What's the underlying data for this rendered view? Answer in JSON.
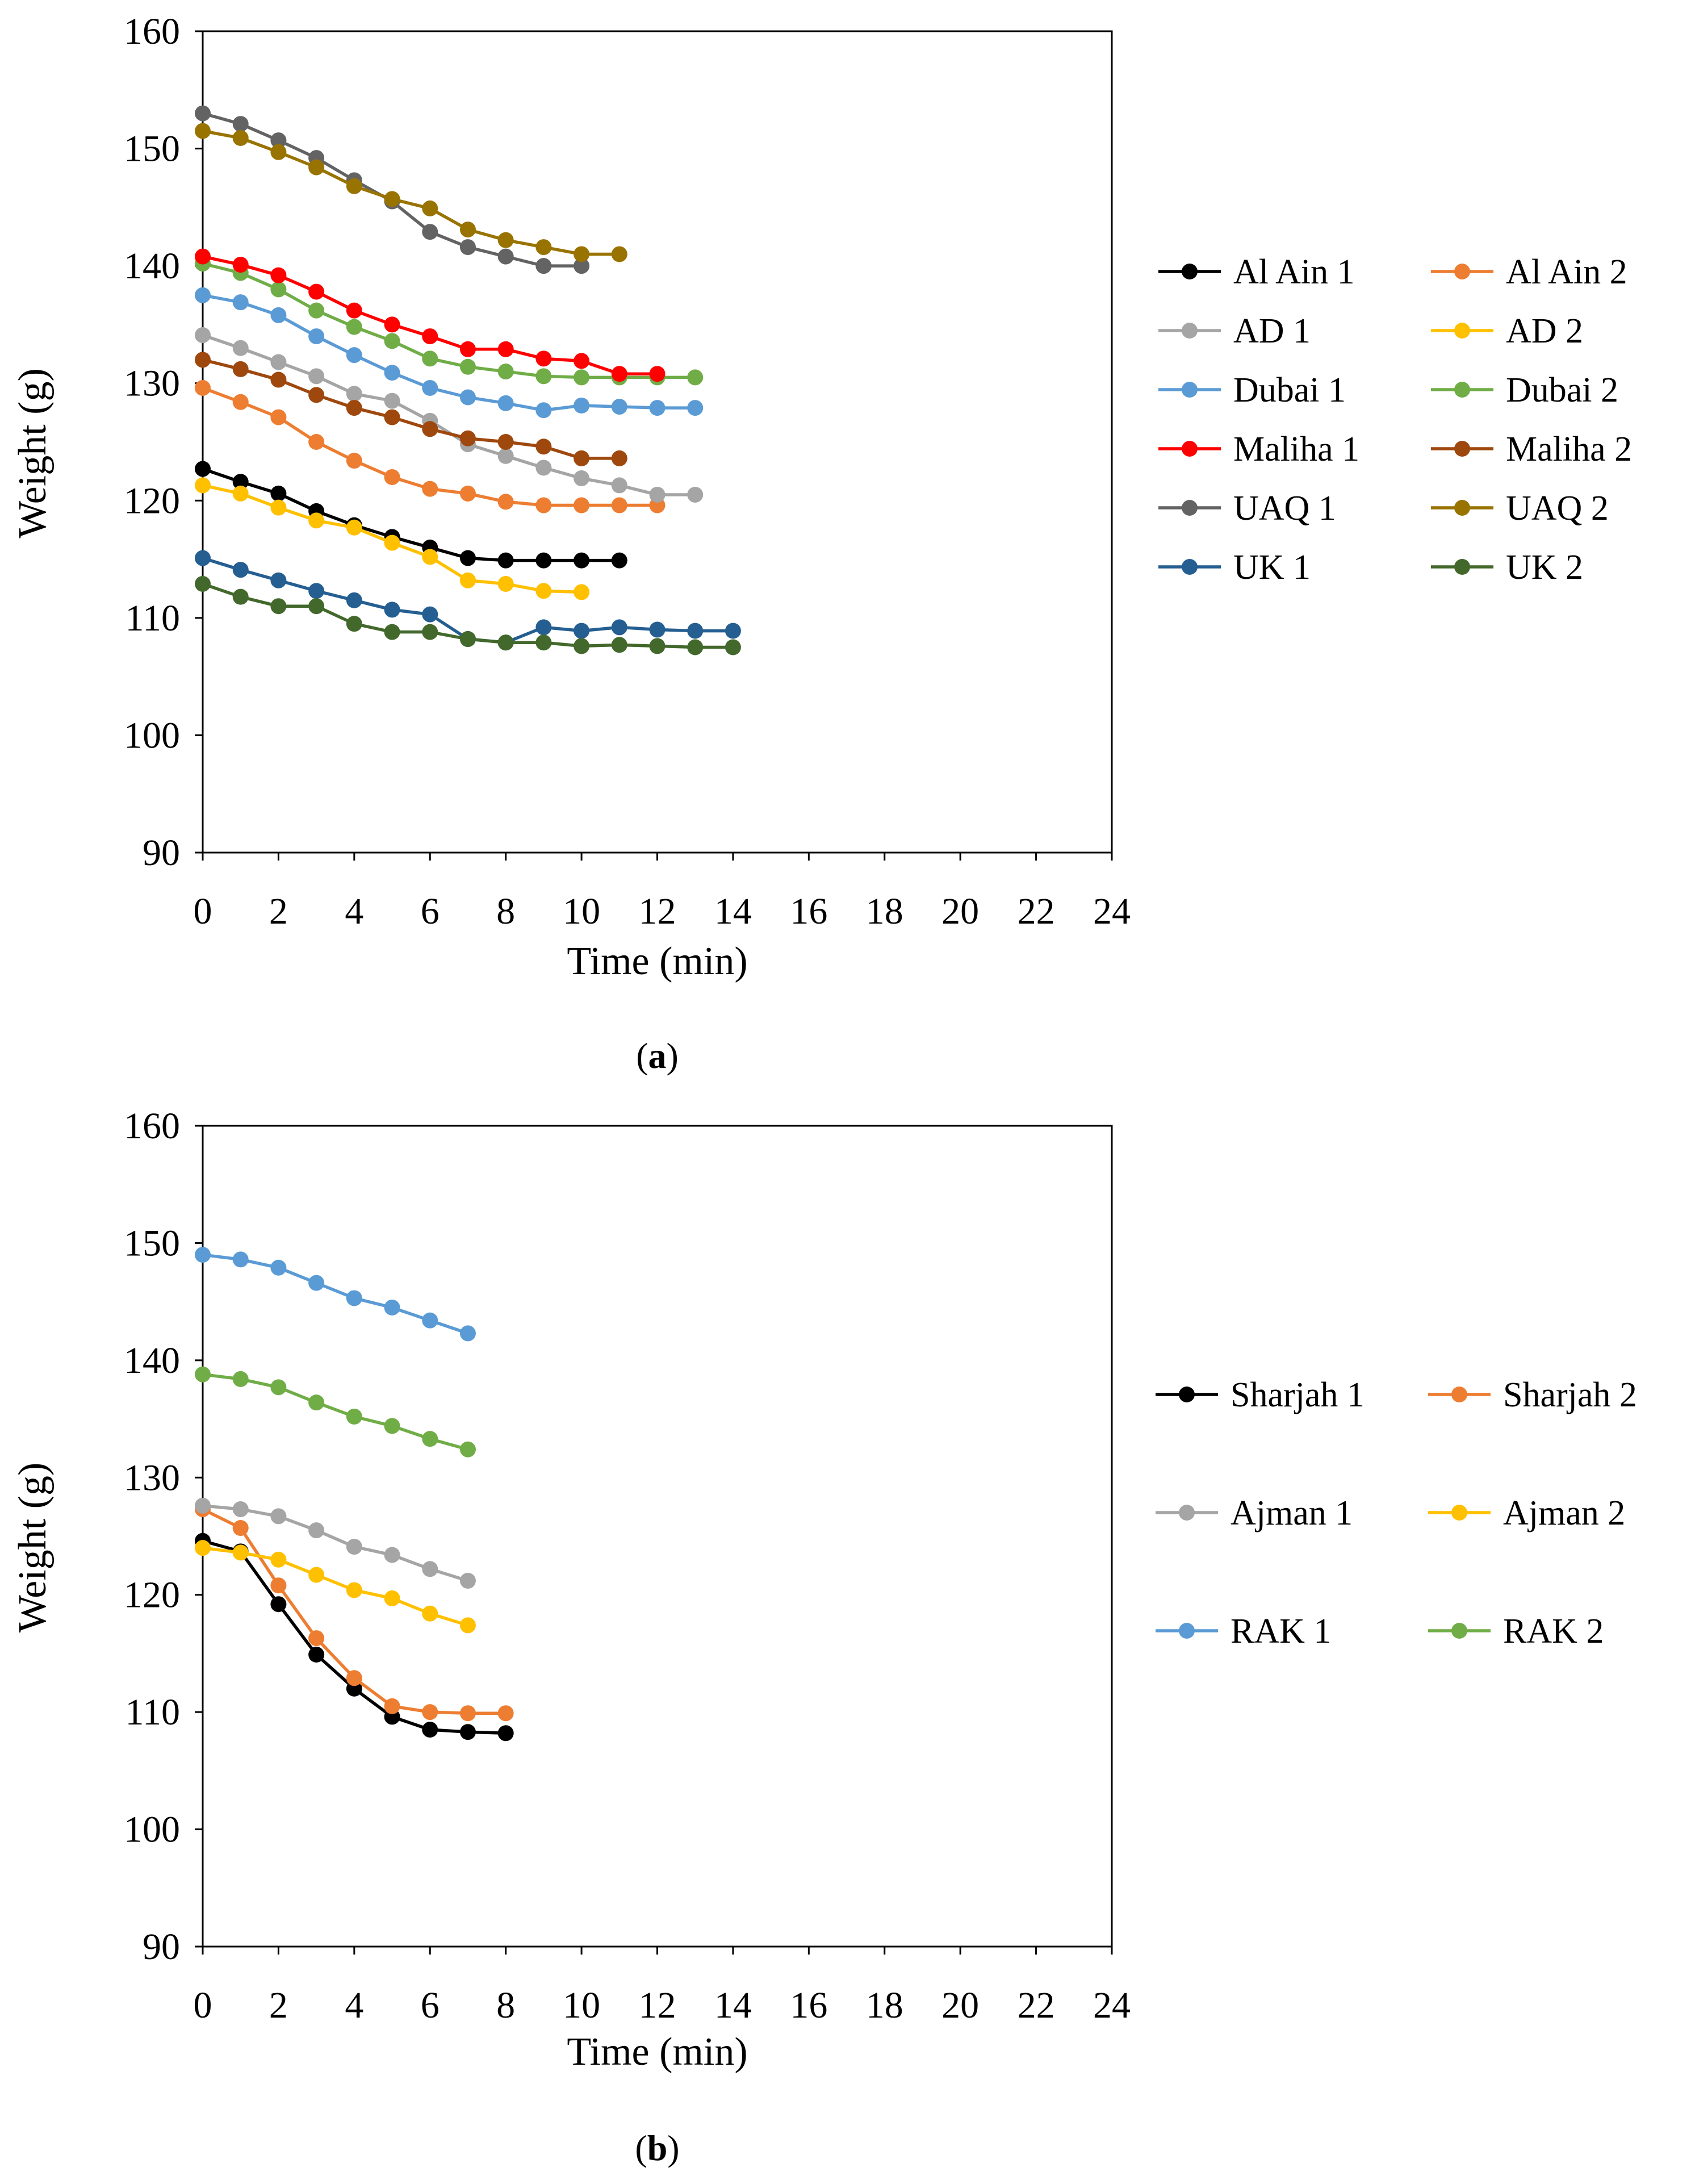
{
  "chart_data": [
    {
      "type": "line",
      "panel": "a",
      "caption": {
        "open": "(",
        "letter": "a",
        "close": ")"
      },
      "xlabel": "Time (min)",
      "ylabel": "Weight (g)",
      "xlim": [
        0,
        24
      ],
      "ylim": [
        90,
        160
      ],
      "xticks": [
        0,
        2,
        4,
        6,
        8,
        10,
        12,
        14,
        16,
        18,
        20,
        22,
        24
      ],
      "yticks": [
        90,
        100,
        110,
        120,
        130,
        140,
        150,
        160
      ],
      "grid": false,
      "legend": "right",
      "series": [
        {
          "name": "Al Ain 1",
          "color": "#000000",
          "values": [
            122.7,
            121.6,
            120.6,
            119.1,
            117.9,
            116.9,
            116.0,
            115.1,
            114.9,
            114.9,
            114.9,
            114.9
          ]
        },
        {
          "name": "Al Ain 2",
          "color": "#ed7d31",
          "values": [
            129.6,
            128.4,
            127.1,
            125.0,
            123.4,
            122.0,
            121.0,
            120.6,
            119.9,
            119.6,
            119.6,
            119.6,
            119.6
          ]
        },
        {
          "name": "AD 1",
          "color": "#a5a5a5",
          "values": [
            134.1,
            133.0,
            131.8,
            130.6,
            129.1,
            128.5,
            126.8,
            124.8,
            123.8,
            122.8,
            121.9,
            121.3,
            120.5,
            120.5
          ]
        },
        {
          "name": "AD 2",
          "color": "#ffc000",
          "values": [
            121.3,
            120.6,
            119.4,
            118.3,
            117.7,
            116.4,
            115.2,
            113.2,
            112.9,
            112.3,
            112.2
          ]
        },
        {
          "name": "Dubai 1",
          "color": "#5b9bd5",
          "values": [
            137.5,
            136.9,
            135.8,
            134.0,
            132.4,
            130.9,
            129.6,
            128.8,
            128.3,
            127.7,
            128.1,
            128.0,
            127.9,
            127.9
          ]
        },
        {
          "name": "Dubai 2",
          "color": "#70ad47",
          "values": [
            140.2,
            139.4,
            138.0,
            136.2,
            134.8,
            133.6,
            132.1,
            131.4,
            131.0,
            130.6,
            130.5,
            130.5,
            130.5,
            130.5
          ]
        },
        {
          "name": "Maliha 1",
          "color": "#ff0000",
          "values": [
            140.8,
            140.1,
            139.2,
            137.8,
            136.2,
            135.0,
            134.0,
            132.9,
            132.9,
            132.1,
            131.9,
            130.8,
            130.8
          ]
        },
        {
          "name": "Maliha 2",
          "color": "#9e480e",
          "values": [
            132.0,
            131.2,
            130.3,
            129.0,
            127.9,
            127.1,
            126.1,
            125.3,
            125.0,
            124.6,
            123.6,
            123.6
          ]
        },
        {
          "name": "UAQ 1",
          "color": "#636363",
          "values": [
            153.0,
            152.1,
            150.7,
            149.2,
            147.3,
            145.5,
            142.9,
            141.6,
            140.8,
            140.0,
            140.0
          ]
        },
        {
          "name": "UAQ 2",
          "color": "#997300",
          "values": [
            151.5,
            150.9,
            149.7,
            148.4,
            146.8,
            145.7,
            144.9,
            143.1,
            142.2,
            141.6,
            141.0,
            141.0
          ]
        },
        {
          "name": "UK 1",
          "color": "#255e91",
          "values": [
            115.1,
            114.1,
            113.2,
            112.3,
            111.5,
            110.7,
            110.3,
            108.2,
            107.9,
            109.2,
            108.9,
            109.2,
            109.0,
            108.9,
            108.9
          ]
        },
        {
          "name": "UK 2",
          "color": "#43682b",
          "values": [
            112.9,
            111.8,
            111.0,
            111.0,
            109.5,
            108.8,
            108.8,
            108.2,
            107.9,
            107.9,
            107.6,
            107.7,
            107.6,
            107.5,
            107.5
          ]
        }
      ]
    },
    {
      "type": "line",
      "panel": "b",
      "caption": {
        "open": "(",
        "letter": "b",
        "close": ")"
      },
      "xlabel": "Time (min)",
      "ylabel": "Weight (g)",
      "xlim": [
        0,
        24
      ],
      "ylim": [
        90,
        160
      ],
      "xticks": [
        0,
        2,
        4,
        6,
        8,
        10,
        12,
        14,
        16,
        18,
        20,
        22,
        24
      ],
      "yticks": [
        90,
        100,
        110,
        120,
        130,
        140,
        150,
        160
      ],
      "grid": false,
      "legend": "right",
      "series": [
        {
          "name": "Sharjah 1",
          "color": "#000000",
          "values": [
            124.6,
            123.7,
            119.2,
            114.9,
            112.0,
            109.6,
            108.5,
            108.3,
            108.2
          ]
        },
        {
          "name": "Sharjah 2",
          "color": "#ed7d31",
          "values": [
            127.3,
            125.7,
            120.8,
            116.3,
            112.9,
            110.5,
            110.0,
            109.9,
            109.9
          ]
        },
        {
          "name": "Ajman 1",
          "color": "#a5a5a5",
          "values": [
            127.6,
            127.3,
            126.7,
            125.5,
            124.1,
            123.4,
            122.2,
            121.2
          ]
        },
        {
          "name": "Ajman 2",
          "color": "#ffc000",
          "values": [
            124.0,
            123.6,
            123.0,
            121.7,
            120.4,
            119.7,
            118.4,
            117.4
          ]
        },
        {
          "name": "RAK 1",
          "color": "#5b9bd5",
          "values": [
            149.0,
            148.6,
            147.9,
            146.6,
            145.3,
            144.5,
            143.4,
            142.3
          ]
        },
        {
          "name": "RAK 2",
          "color": "#70ad47",
          "values": [
            138.8,
            138.4,
            137.7,
            136.4,
            135.2,
            134.4,
            133.3,
            132.4
          ]
        }
      ]
    }
  ]
}
